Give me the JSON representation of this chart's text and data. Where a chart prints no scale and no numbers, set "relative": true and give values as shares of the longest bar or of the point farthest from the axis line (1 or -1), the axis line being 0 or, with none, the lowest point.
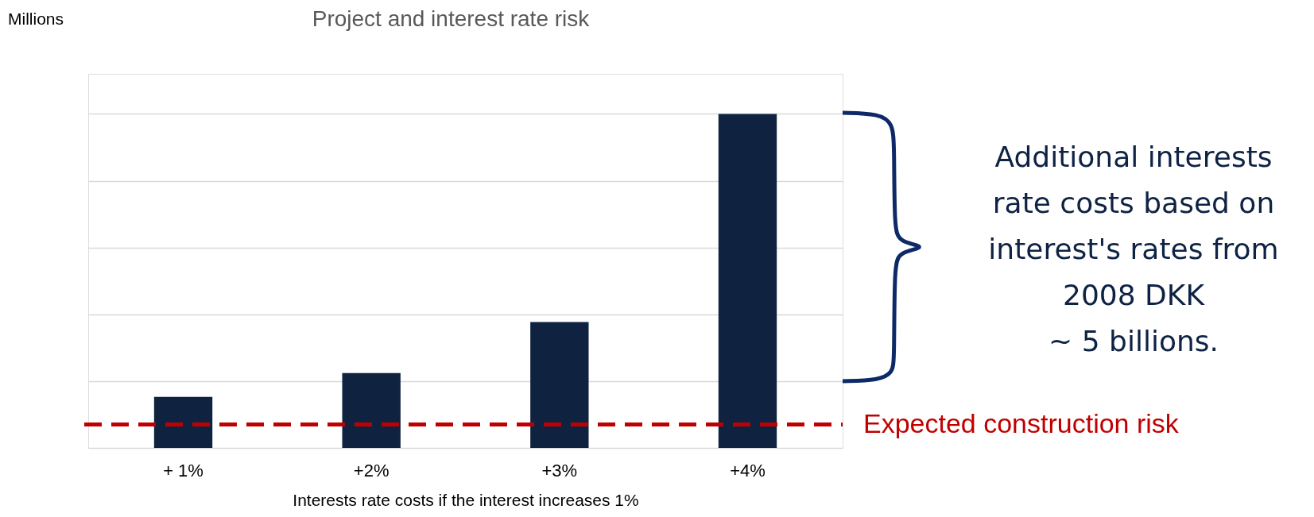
{
  "chart_data": {
    "type": "bar",
    "title": "Project and interest rate risk",
    "xlabel": "Interests rate costs if the interest increases 1%",
    "categories": [
      "+ 1%",
      "+2%",
      "+3%",
      "+4%"
    ],
    "values": [
      0.153,
      0.224,
      0.377,
      1
    ],
    "color": "#0f2341",
    "relative": true,
    "grid": "y",
    "ref_lines": [
      {
        "axis": "y",
        "value": 0.07,
        "label": "Expected construction risk",
        "color": "#c00000",
        "line_style": "dashed"
      }
    ],
    "annotations": [
      "Millions",
      "Additional interests\nrate costs based on\ninterest's rates from\n2008 DKK\n~ 5 billions."
    ]
  }
}
